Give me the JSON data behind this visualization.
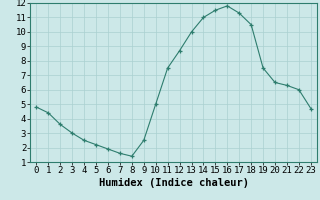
{
  "x": [
    0,
    1,
    2,
    3,
    4,
    5,
    6,
    7,
    8,
    9,
    10,
    11,
    12,
    13,
    14,
    15,
    16,
    17,
    18,
    19,
    20,
    21,
    22,
    23
  ],
  "y": [
    4.8,
    4.4,
    3.6,
    3.0,
    2.5,
    2.2,
    1.9,
    1.6,
    1.4,
    2.5,
    5.0,
    7.5,
    8.7,
    10.0,
    11.0,
    11.5,
    11.8,
    11.3,
    10.5,
    7.5,
    6.5,
    6.3,
    6.0,
    4.7
  ],
  "line_color": "#2e7d6e",
  "marker": "+",
  "bg_color": "#cce8e8",
  "grid_color": "#aad0d0",
  "xlabel": "Humidex (Indice chaleur)",
  "xlim": [
    -0.5,
    23.5
  ],
  "ylim": [
    1,
    12
  ],
  "yticks": [
    1,
    2,
    3,
    4,
    5,
    6,
    7,
    8,
    9,
    10,
    11,
    12
  ],
  "xticks": [
    0,
    1,
    2,
    3,
    4,
    5,
    6,
    7,
    8,
    9,
    10,
    11,
    12,
    13,
    14,
    15,
    16,
    17,
    18,
    19,
    20,
    21,
    22,
    23
  ],
  "xlabel_fontsize": 7.5,
  "tick_fontsize": 6.5
}
